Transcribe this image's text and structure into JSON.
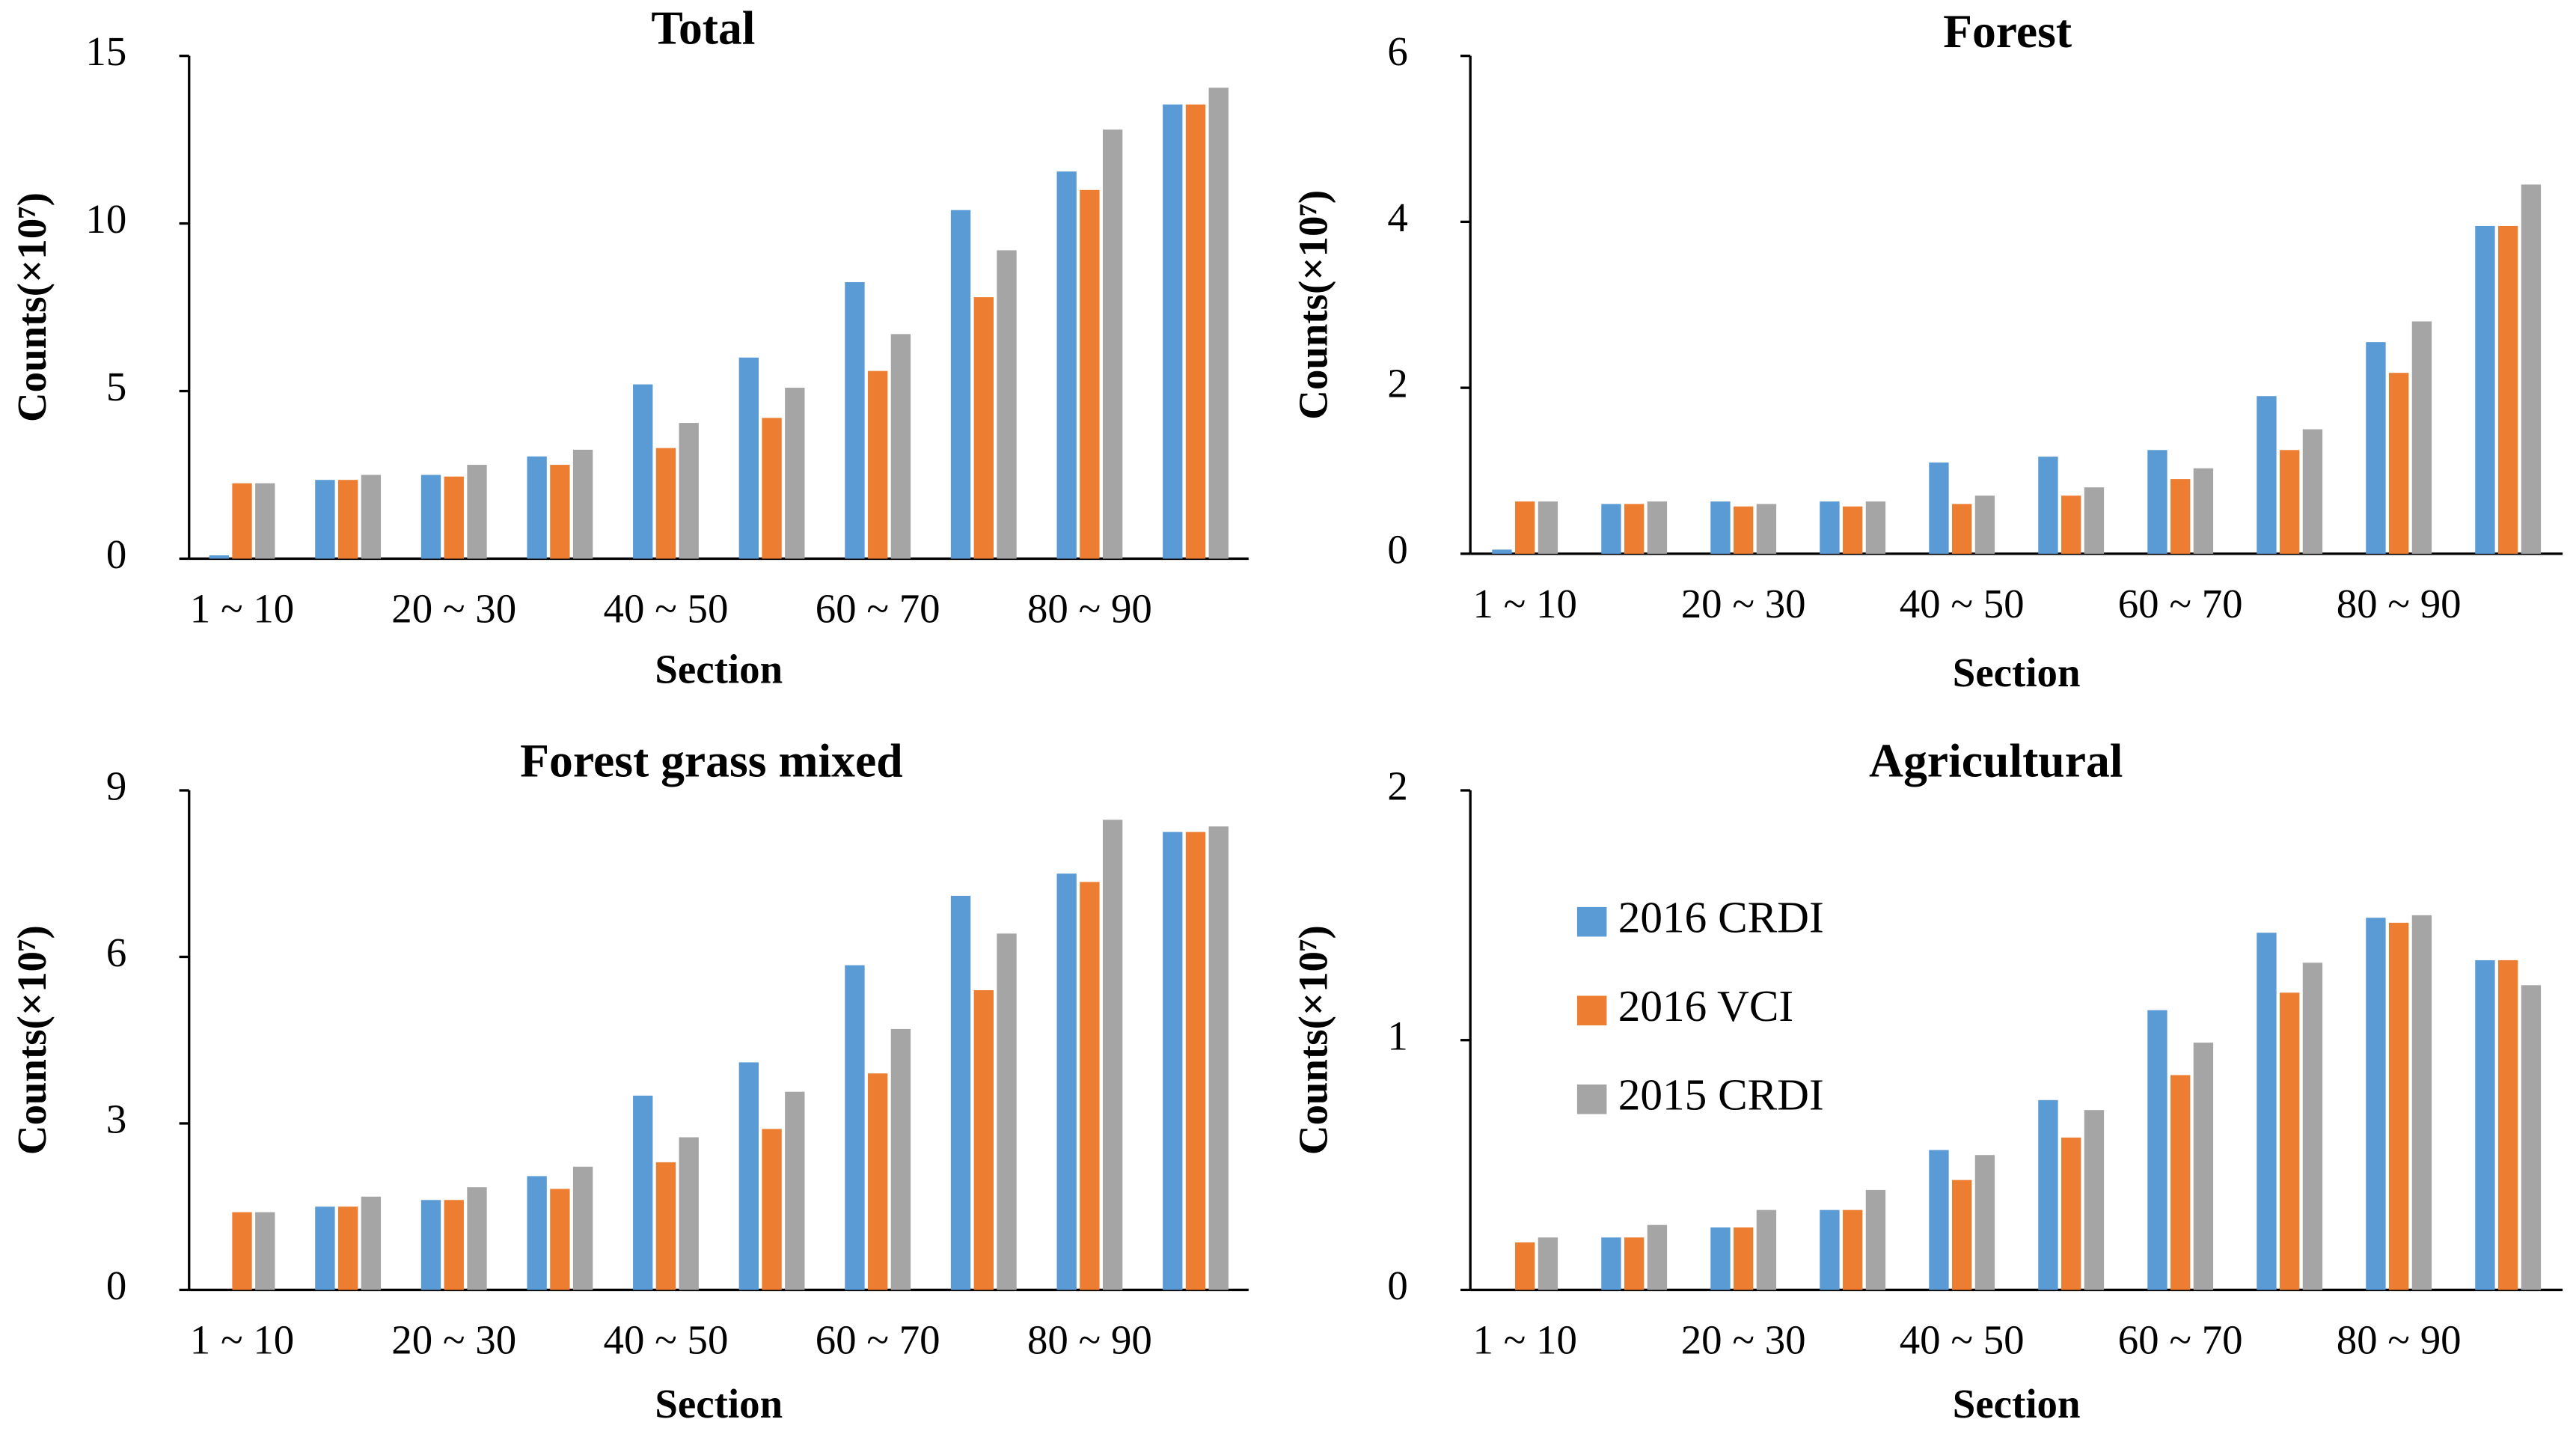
{
  "chart_data": [
    {
      "type": "bar",
      "title": "Total",
      "x_label": "Section",
      "y_label": "Counts(×10⁷)",
      "categories": [
        "1 ~ 10",
        null,
        "20 ~ 30",
        null,
        "40 ~ 50",
        null,
        "60 ~ 70",
        null,
        "80 ~ 90",
        null
      ],
      "series": [
        {
          "color": "#5b9bd5",
          "values": [
            0.1,
            2.35,
            2.5,
            3.05,
            5.2,
            6.0,
            8.25,
            10.4,
            11.55,
            13.55
          ]
        },
        {
          "color": "#ed7d31",
          "values": [
            2.25,
            2.35,
            2.45,
            2.8,
            3.3,
            4.2,
            5.6,
            7.8,
            11.0,
            13.55
          ]
        },
        {
          "color": "#a5a5a5",
          "values": [
            2.25,
            2.5,
            2.8,
            3.25,
            4.05,
            5.1,
            6.7,
            9.2,
            12.8,
            14.05
          ]
        }
      ],
      "ylim": [
        0,
        15
      ],
      "yticks": [
        0,
        5,
        10,
        15
      ]
    },
    {
      "type": "bar",
      "title": "Forest",
      "x_label": "Section",
      "y_label": "Counts(×10⁷)",
      "categories": [
        "1 ~ 10",
        null,
        "20 ~ 30",
        null,
        "40 ~ 50",
        null,
        "60 ~ 70",
        null,
        "80 ~ 90",
        null
      ],
      "series": [
        {
          "color": "#5b9bd5",
          "values": [
            0.05,
            0.6,
            0.63,
            0.63,
            1.1,
            1.17,
            1.25,
            1.9,
            2.55,
            3.95
          ]
        },
        {
          "color": "#ed7d31",
          "values": [
            0.63,
            0.6,
            0.57,
            0.57,
            0.6,
            0.7,
            0.9,
            1.25,
            2.18,
            3.95
          ]
        },
        {
          "color": "#a5a5a5",
          "values": [
            0.63,
            0.63,
            0.6,
            0.63,
            0.7,
            0.8,
            1.03,
            1.5,
            2.8,
            4.45
          ]
        }
      ],
      "ylim": [
        0,
        6
      ],
      "yticks": [
        0,
        2,
        4,
        6
      ]
    },
    {
      "type": "bar",
      "title": "Forest grass mixed",
      "x_label": "Section",
      "y_label": "Counts(×10⁷)",
      "categories": [
        "1 ~ 10",
        null,
        "20 ~ 30",
        null,
        "40 ~ 50",
        null,
        "60 ~ 70",
        null,
        "80 ~ 90",
        null
      ],
      "series": [
        {
          "color": "#5b9bd5",
          "values": [
            0,
            1.5,
            1.62,
            2.05,
            3.5,
            4.1,
            5.85,
            7.1,
            7.5,
            8.25
          ]
        },
        {
          "color": "#ed7d31",
          "values": [
            1.4,
            1.5,
            1.62,
            1.82,
            2.3,
            2.9,
            3.9,
            5.4,
            7.35,
            8.25
          ]
        },
        {
          "color": "#a5a5a5",
          "values": [
            1.4,
            1.68,
            1.85,
            2.22,
            2.75,
            3.57,
            4.7,
            6.42,
            8.47,
            8.35
          ]
        }
      ],
      "ylim": [
        0,
        9
      ],
      "yticks": [
        0,
        3,
        6,
        9
      ]
    },
    {
      "type": "bar",
      "title": "Agricultural",
      "x_label": "Section",
      "y_label": "Counts(×10⁷)",
      "categories": [
        "1 ~ 10",
        null,
        "20 ~ 30",
        null,
        "40 ~ 50",
        null,
        "60 ~ 70",
        null,
        "80 ~ 90",
        null
      ],
      "series": [
        {
          "name": "2016 CRDI",
          "color": "#5b9bd5",
          "values": [
            0,
            0.21,
            0.25,
            0.32,
            0.56,
            0.76,
            1.12,
            1.43,
            1.49,
            1.32
          ]
        },
        {
          "name": "2016 VCI",
          "color": "#ed7d31",
          "values": [
            0.19,
            0.21,
            0.25,
            0.32,
            0.44,
            0.61,
            0.86,
            1.19,
            1.47,
            1.32
          ]
        },
        {
          "name": "2015 CRDI",
          "color": "#a5a5a5",
          "values": [
            0.21,
            0.26,
            0.32,
            0.4,
            0.54,
            0.72,
            0.99,
            1.31,
            1.5,
            1.22
          ]
        }
      ],
      "ylim": [
        0,
        2
      ],
      "yticks": [
        0,
        1,
        2
      ],
      "legend": "upper left"
    }
  ]
}
